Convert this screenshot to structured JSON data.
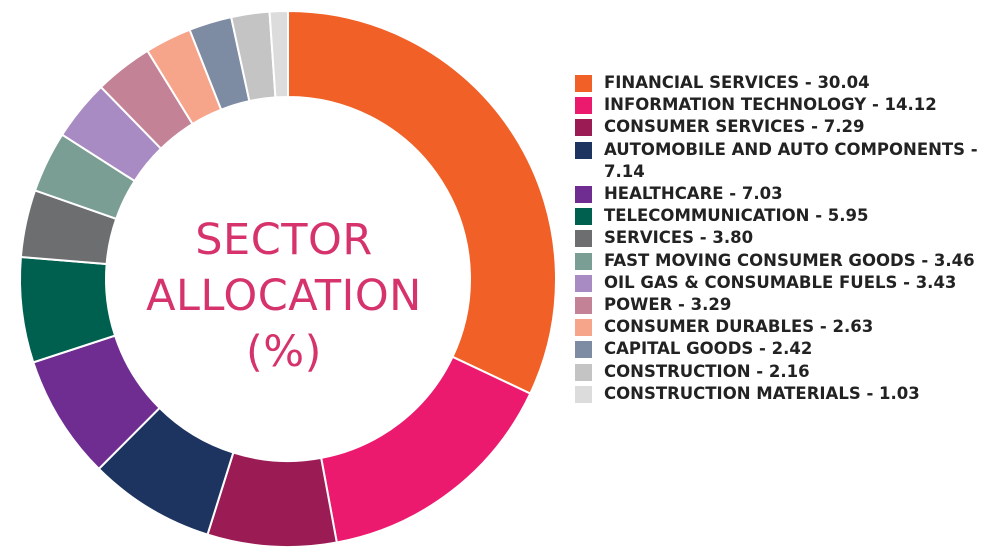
{
  "chart_data": {
    "type": "pie",
    "donut": true,
    "title_lines": [
      "SECTOR",
      "ALLOCATION",
      "(%)"
    ],
    "title_color": "#d6336c",
    "legend_position": "right",
    "slices": [
      {
        "label": "FINANCIAL SERVICES - 30.04",
        "value": 30.04,
        "color": "#f06027"
      },
      {
        "label": "INFORMATION TECHNOLOGY - 14.12",
        "value": 14.12,
        "color": "#ec1a6e"
      },
      {
        "label": "CONSUMER SERVICES - 7.29",
        "value": 7.29,
        "color": "#9b1c55"
      },
      {
        "label": "AUTOMOBILE AND AUTO COMPONENTS - 7.14",
        "value": 7.14,
        "color": "#1d3461"
      },
      {
        "label": "HEALTHCARE - 7.03",
        "value": 7.03,
        "color": "#6f2d91"
      },
      {
        "label": "TELECOMMUNICATION - 5.95",
        "value": 5.95,
        "color": "#00604f"
      },
      {
        "label": "SERVICES - 3.80",
        "value": 3.8,
        "color": "#6d6e70"
      },
      {
        "label": "FAST MOVING CONSUMER GOODS - 3.46",
        "value": 3.46,
        "color": "#7a9e93"
      },
      {
        "label": "OIL GAS & CONSUMABLE FUELS - 3.43",
        "value": 3.43,
        "color": "#a98bc4"
      },
      {
        "label": "POWER - 3.29",
        "value": 3.29,
        "color": "#c48296"
      },
      {
        "label": "CONSUMER DURABLES - 2.63",
        "value": 2.63,
        "color": "#f7a58a"
      },
      {
        "label": "CAPITAL GOODS - 2.42",
        "value": 2.42,
        "color": "#7d8ba3"
      },
      {
        "label": "CONSTRUCTION - 2.16",
        "value": 2.16,
        "color": "#c4c4c4"
      },
      {
        "label": "CONSTRUCTION MATERIALS - 1.03",
        "value": 1.03,
        "color": "#dcdcdc"
      }
    ]
  },
  "legend": [
    {
      "text": "FINANCIAL SERVICES - 30.04",
      "color": "#f06027"
    },
    {
      "text": "INFORMATION TECHNOLOGY - 14.12",
      "color": "#ec1a6e"
    },
    {
      "text": "CONSUMER SERVICES - 7.29",
      "color": "#9b1c55"
    },
    {
      "text": "AUTOMOBILE AND AUTO COMPONENTS - 7.14",
      "color": "#1d3461"
    },
    {
      "text": "HEALTHCARE - 7.03",
      "color": "#6f2d91"
    },
    {
      "text": "TELECOMMUNICATION - 5.95",
      "color": "#00604f"
    },
    {
      "text": "SERVICES - 3.80",
      "color": "#6d6e70"
    },
    {
      "text": "FAST MOVING CONSUMER GOODS - 3.46",
      "color": "#7a9e93"
    },
    {
      "text": "OIL GAS & CONSUMABLE FUELS - 3.43",
      "color": "#a98bc4"
    },
    {
      "text": "POWER - 3.29",
      "color": "#c48296"
    },
    {
      "text": "CONSUMER DURABLES - 2.63",
      "color": "#f7a58a"
    },
    {
      "text": "CAPITAL GOODS - 2.42",
      "color": "#7d8ba3"
    },
    {
      "text": "CONSTRUCTION - 2.16",
      "color": "#c4c4c4"
    },
    {
      "text": "CONSTRUCTION MATERIALS - 1.03",
      "color": "#dcdcdc"
    }
  ]
}
